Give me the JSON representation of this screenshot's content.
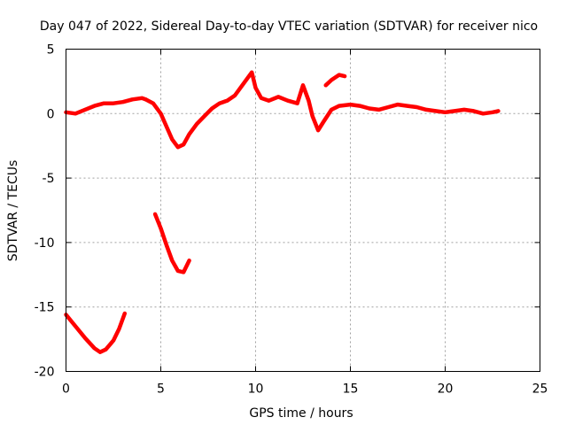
{
  "chart_data": {
    "type": "line",
    "title": "Day 047 of 2022, Sidereal Day-to-day VTEC variation (SDTVAR) for receiver nico",
    "xlabel": "GPS time / hours",
    "ylabel": "SDTVAR / TECUs",
    "xlim": [
      0,
      25
    ],
    "ylim": [
      -20,
      5
    ],
    "xticks": [
      0,
      5,
      10,
      15,
      20,
      25
    ],
    "yticks": [
      5,
      0,
      -5,
      -10,
      -15,
      -20
    ],
    "xtick_labels": [
      "0",
      "5",
      "10",
      "15",
      "20",
      "25"
    ],
    "ytick_labels": [
      "5",
      "0",
      "-5",
      "-10",
      "-15",
      "-20"
    ],
    "grid": true,
    "series_color": "#ff0000",
    "series": [
      {
        "name": "sdtvar-segment-1",
        "points": [
          [
            0.0,
            0.1
          ],
          [
            0.5,
            0.0
          ],
          [
            1.0,
            0.3
          ],
          [
            1.5,
            0.6
          ],
          [
            2.0,
            0.8
          ],
          [
            2.5,
            0.8
          ],
          [
            3.0,
            0.9
          ],
          [
            3.5,
            1.1
          ],
          [
            4.0,
            1.2
          ],
          [
            4.2,
            1.1
          ]
        ]
      },
      {
        "name": "sdtvar-segment-2",
        "points": [
          [
            4.2,
            1.1
          ],
          [
            4.6,
            0.8
          ],
          [
            5.0,
            0.0
          ],
          [
            5.3,
            -1.0
          ],
          [
            5.6,
            -2.0
          ],
          [
            5.9,
            -2.6
          ],
          [
            6.2,
            -2.4
          ],
          [
            6.5,
            -1.6
          ],
          [
            6.9,
            -0.8
          ],
          [
            7.3,
            -0.2
          ],
          [
            7.7,
            0.4
          ],
          [
            8.1,
            0.8
          ],
          [
            8.5,
            1.0
          ],
          [
            8.9,
            1.4
          ],
          [
            9.2,
            2.0
          ],
          [
            9.5,
            2.6
          ],
          [
            9.8,
            3.2
          ],
          [
            10.0,
            2.0
          ],
          [
            10.3,
            1.2
          ],
          [
            10.7,
            1.0
          ],
          [
            11.2,
            1.3
          ],
          [
            11.7,
            1.0
          ],
          [
            12.2,
            0.8
          ],
          [
            12.5,
            2.2
          ],
          [
            12.8,
            1.0
          ],
          [
            13.0,
            -0.2
          ],
          [
            13.3,
            -1.3
          ],
          [
            13.6,
            -0.6
          ],
          [
            14.0,
            0.3
          ],
          [
            14.4,
            0.6
          ],
          [
            15.0,
            0.7
          ],
          [
            15.5,
            0.6
          ],
          [
            16.0,
            0.4
          ],
          [
            16.5,
            0.3
          ],
          [
            17.0,
            0.5
          ],
          [
            17.5,
            0.7
          ],
          [
            18.0,
            0.6
          ],
          [
            18.5,
            0.5
          ],
          [
            19.0,
            0.3
          ],
          [
            19.5,
            0.2
          ],
          [
            20.0,
            0.1
          ],
          [
            20.5,
            0.2
          ],
          [
            21.0,
            0.3
          ],
          [
            21.5,
            0.2
          ],
          [
            22.0,
            0.0
          ],
          [
            22.5,
            0.1
          ],
          [
            22.8,
            0.2
          ]
        ]
      },
      {
        "name": "sdtvar-segment-3",
        "points": [
          [
            13.7,
            2.2
          ],
          [
            14.0,
            2.6
          ],
          [
            14.4,
            3.0
          ],
          [
            14.7,
            2.9
          ]
        ]
      },
      {
        "name": "sdtvar-segment-4",
        "points": [
          [
            0.0,
            -15.6
          ],
          [
            0.5,
            -16.5
          ],
          [
            1.0,
            -17.4
          ],
          [
            1.5,
            -18.2
          ],
          [
            1.8,
            -18.5
          ],
          [
            2.1,
            -18.3
          ],
          [
            2.5,
            -17.6
          ],
          [
            2.8,
            -16.7
          ],
          [
            3.1,
            -15.5
          ]
        ]
      },
      {
        "name": "sdtvar-segment-5",
        "points": [
          [
            4.7,
            -7.8
          ],
          [
            5.0,
            -8.9
          ],
          [
            5.3,
            -10.2
          ],
          [
            5.6,
            -11.4
          ],
          [
            5.9,
            -12.2
          ],
          [
            6.2,
            -12.3
          ],
          [
            6.5,
            -11.4
          ]
        ]
      }
    ]
  }
}
